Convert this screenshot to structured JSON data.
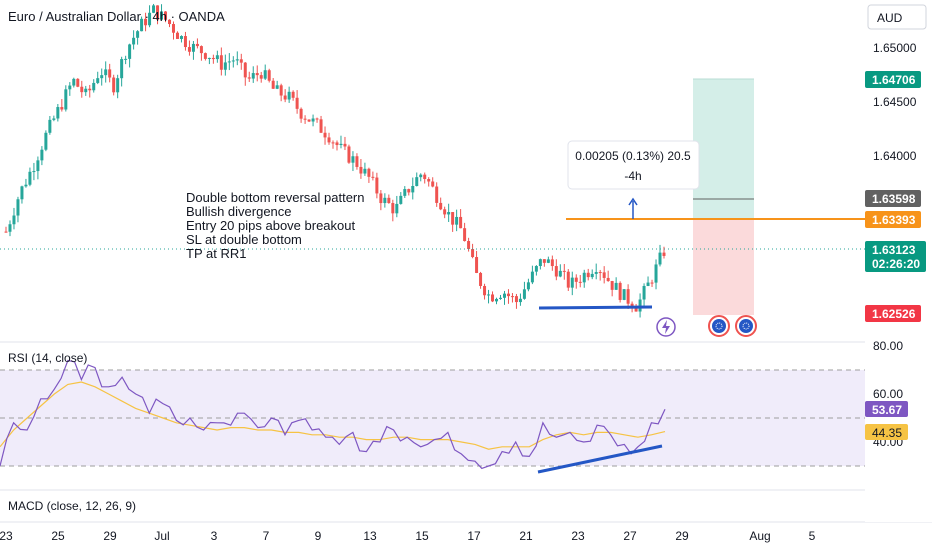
{
  "header": {
    "title": "Euro / Australian Dollar · 4h · OANDA",
    "currency": "AUD"
  },
  "annotations": {
    "lines": [
      "Double bottom reversal pattern",
      "Bullish divergence",
      "Entry 20 pips above breakout",
      "SL at double bottom",
      "TP at RR1"
    ],
    "measure_value": "0.00205 (0.13%) 20.5",
    "measure_time": "-4h"
  },
  "price_tags": {
    "tp": "1.64706",
    "current": "1.63123",
    "countdown": "02:26:20",
    "sl": "1.62526",
    "entry": "1.63393",
    "gray": "1.63598"
  },
  "rsi": {
    "title": "RSI (14, close)",
    "value": "53.67",
    "ma_value": "44.35"
  },
  "macd": {
    "title": "MACD (close, 12, 26, 9)"
  },
  "colors": {
    "up": "#26a69a",
    "down": "#ef5350",
    "orange": "#f7931a",
    "blue": "#2457c5",
    "rsi": "#7e57c2",
    "rsi_ma": "#f6c344",
    "tp_zone": "#d4eee8",
    "sl_zone": "#fbdadb"
  },
  "chart_data": {
    "type": "candlestick",
    "symbol": "EURAUD",
    "timeframe": "4h",
    "price_axis": [
      1.65,
      1.645,
      1.64
    ],
    "price_axis_labels": [
      "1.65000",
      "1.64500",
      "1.64000"
    ],
    "rsi_axis": [
      80,
      60,
      40
    ],
    "rsi_axis_labels": [
      "80.00",
      "60.00",
      "40.00"
    ],
    "x_labels": [
      "23",
      "25",
      "29",
      "Jul",
      "3",
      "7",
      "9",
      "13",
      "15",
      "17",
      "21",
      "23",
      "27",
      "29",
      "Aug",
      "5"
    ],
    "close_path": [
      1.633,
      1.6365,
      1.639,
      1.642,
      1.6445,
      1.647,
      1.6455,
      1.648,
      1.6465,
      1.65,
      1.652,
      1.6535,
      1.6525,
      1.651,
      1.65,
      1.6495,
      1.6485,
      1.649,
      1.647,
      1.6478,
      1.646,
      1.6455,
      1.644,
      1.643,
      1.642,
      1.6405,
      1.6395,
      1.638,
      1.636,
      1.635,
      1.637,
      1.6385,
      1.6365,
      1.6345,
      1.633,
      1.629,
      1.627,
      1.6275,
      1.6265,
      1.6285,
      1.6305,
      1.6295,
      1.628,
      1.629,
      1.63,
      1.6283,
      1.627,
      1.6261,
      1.6285,
      1.6312
    ],
    "entry": 1.63393,
    "take_profit": 1.64706,
    "stop_loss": 1.62526,
    "current": 1.63123,
    "rsi_path": [
      30,
      48,
      45,
      58,
      62,
      74,
      66,
      71,
      63,
      67,
      60,
      52,
      56,
      49,
      50,
      45,
      48,
      47,
      52,
      46,
      50,
      43,
      49,
      45,
      42,
      39,
      44,
      36,
      40,
      45,
      42,
      38,
      41,
      44,
      35,
      32,
      30,
      36,
      40,
      34,
      48,
      42,
      44,
      40,
      47,
      43,
      39,
      38,
      48,
      53.67
    ],
    "rsi_ma_path": [
      38,
      45,
      50,
      55,
      60,
      64,
      65,
      63,
      60,
      57,
      54,
      52,
      50,
      48,
      47,
      46,
      45,
      46,
      46,
      45,
      45,
      44,
      44,
      43,
      43,
      42,
      42,
      41,
      41,
      42,
      42,
      41,
      41,
      41,
      40,
      39,
      37,
      38,
      38,
      38,
      41,
      43,
      44,
      43,
      44,
      44,
      43,
      42,
      43,
      44.35
    ]
  }
}
